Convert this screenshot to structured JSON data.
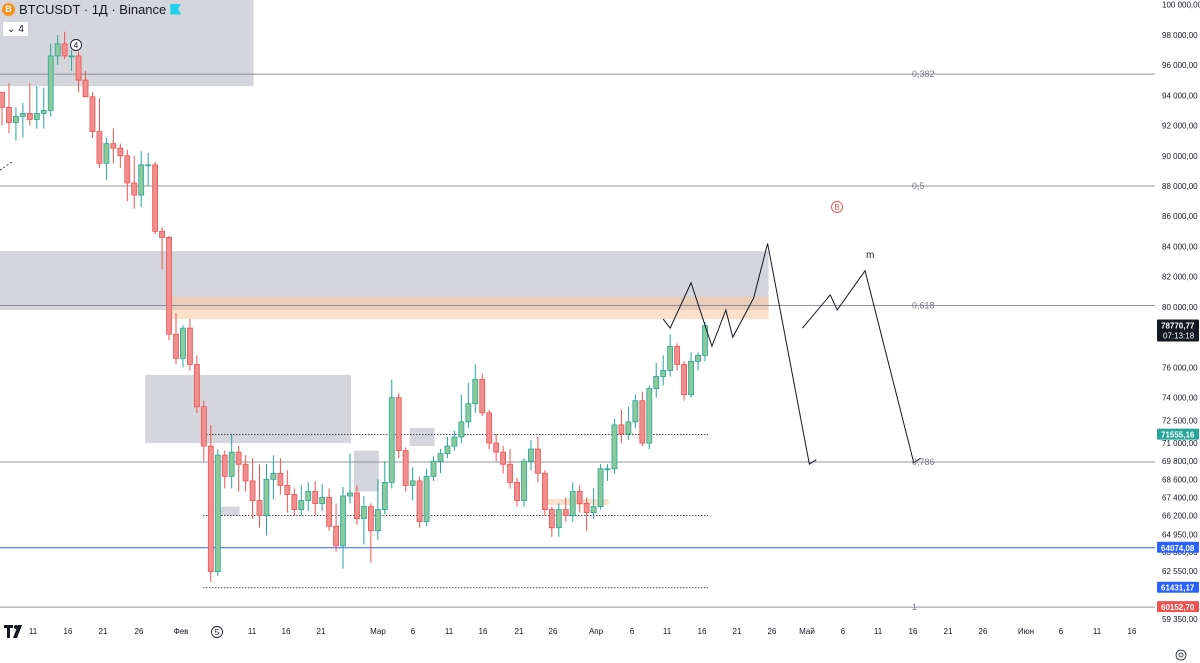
{
  "header": {
    "symbol": "BTCUSDT",
    "interval": "1Д",
    "exchange": "Binance",
    "coin_letter": "B",
    "title": "BTCUSDT · 1Д · Binance"
  },
  "indicator": {
    "chevron": "⌄",
    "value": "4"
  },
  "colors": {
    "up": "#26a69a",
    "up_fill": "#8bc99a",
    "down": "#ef5350",
    "down_fill": "#f08f90",
    "zone": "#b2b5be",
    "orange": "#f7c9a0",
    "blue_line": "#2962ff",
    "fib_line": "#787b86"
  },
  "price_axis": {
    "ticks": [
      "100 000,00",
      "98 000,00",
      "96 000,00",
      "94 000,00",
      "92 000,00",
      "90 000,00",
      "88 000,00",
      "86 000,00",
      "84 000,00",
      "82 000,00",
      "80 000,00",
      "78 000,00",
      "76 000,00",
      "74 000,00",
      "72 500,00",
      "71 000,00",
      "69 800,00",
      "68 600,00",
      "67 400,00",
      "66 200,00",
      "64 950,00",
      "63 800,00",
      "62 550,00",
      "61 350,00",
      "59 350,00"
    ]
  },
  "price_labels": [
    {
      "text": "78770,77",
      "sub": "07:13:18",
      "bg": "#131722",
      "fg": "#ffffff"
    },
    {
      "text": "71555,16",
      "bg": "#26a69a",
      "fg": "#ffffff"
    },
    {
      "text": "64074,08",
      "bg": "#2962ff",
      "fg": "#ffffff"
    },
    {
      "text": "61431,17",
      "bg": "#2962ff",
      "fg": "#ffffff"
    },
    {
      "text": "60152,70",
      "bg": "#ef5350",
      "fg": "#ffffff"
    }
  ],
  "fib_levels": [
    "0,382",
    "0,5",
    "0,618",
    "0,786",
    "1"
  ],
  "time_axis": {
    "ticks": [
      "11",
      "16",
      "21",
      "26",
      "Фев",
      "6",
      "11",
      "16",
      "21",
      "Мар",
      "6",
      "11",
      "16",
      "21",
      "26",
      "Апр",
      "6",
      "11",
      "16",
      "21",
      "26",
      "Май",
      "6",
      "11",
      "16",
      "21",
      "26",
      "Июн",
      "6",
      "11",
      "16"
    ]
  },
  "annotations": {
    "wave4": "4",
    "wave5": "5",
    "pointB": "B",
    "letter_m": "m"
  },
  "chart_data": {
    "type": "candlestick",
    "symbol": "BTCUSDT",
    "interval": "1Д",
    "ylim": [
      59100,
      100300
    ],
    "candles": [
      [
        94200,
        94200,
        92000,
        93200
      ],
      [
        93200,
        94800,
        91500,
        92200
      ],
      [
        92200,
        93200,
        91000,
        92600
      ],
      [
        92600,
        93500,
        91200,
        92800
      ],
      [
        92800,
        94800,
        92000,
        92400
      ],
      [
        92400,
        94600,
        91800,
        92800
      ],
      [
        92800,
        94500,
        91800,
        93000
      ],
      [
        93000,
        97400,
        92600,
        96600
      ],
      [
        96600,
        98000,
        96000,
        97400
      ],
      [
        97400,
        98200,
        96400,
        96600
      ],
      [
        96600,
        97000,
        95600,
        96600
      ],
      [
        96600,
        96900,
        94200,
        95000
      ],
      [
        95000,
        95600,
        94000,
        93900
      ],
      [
        93900,
        94200,
        91200,
        91600
      ],
      [
        91600,
        93800,
        89200,
        89500
      ],
      [
        89500,
        91200,
        88400,
        90800
      ],
      [
        90800,
        91800,
        89500,
        90500
      ],
      [
        90500,
        90800,
        89200,
        90000
      ],
      [
        90000,
        90400,
        87000,
        88200
      ],
      [
        88200,
        90000,
        86500,
        87400
      ],
      [
        87400,
        90300,
        86600,
        89400
      ],
      [
        89400,
        90200,
        88000,
        89400
      ],
      [
        89400,
        89600,
        84800,
        85000
      ],
      [
        85000,
        85300,
        82500,
        84600
      ],
      [
        84600,
        84700,
        77800,
        78200
      ],
      [
        78200,
        79600,
        76200,
        76600
      ],
      [
        76600,
        78800,
        76000,
        78600
      ],
      [
        78600,
        79200,
        75800,
        76200
      ],
      [
        76200,
        76800,
        73000,
        73400
      ],
      [
        73400,
        73800,
        69800,
        70800
      ],
      [
        70800,
        72200,
        61800,
        62500
      ],
      [
        62500,
        70600,
        62200,
        70200
      ],
      [
        70200,
        70500,
        68000,
        68800
      ],
      [
        68800,
        71600,
        68000,
        70400
      ],
      [
        70400,
        70800,
        67800,
        69600
      ],
      [
        69600,
        70200,
        67800,
        68500
      ],
      [
        68500,
        70000,
        66000,
        67200
      ],
      [
        67200,
        69600,
        65400,
        66200
      ],
      [
        66200,
        69600,
        64900,
        68600
      ],
      [
        68600,
        70200,
        67300,
        69000
      ],
      [
        69000,
        70000,
        67600,
        68200
      ],
      [
        68200,
        69200,
        66400,
        67600
      ],
      [
        67600,
        68000,
        66200,
        66600
      ],
      [
        66600,
        68200,
        66200,
        67200
      ],
      [
        67200,
        68400,
        66500,
        67800
      ],
      [
        67800,
        68500,
        66200,
        67000
      ],
      [
        67000,
        68300,
        66500,
        67400
      ],
      [
        67400,
        68000,
        65200,
        65500
      ],
      [
        65500,
        67000,
        63800,
        64200
      ],
      [
        64200,
        68100,
        62700,
        67500
      ],
      [
        67500,
        70300,
        67000,
        67700
      ],
      [
        67700,
        68200,
        65600,
        66000
      ],
      [
        66000,
        67500,
        64300,
        66800
      ],
      [
        66800,
        67000,
        63100,
        65200
      ],
      [
        65200,
        68600,
        64600,
        66600
      ],
      [
        66600,
        69800,
        66300,
        68400
      ],
      [
        68400,
        75200,
        68000,
        74000
      ],
      [
        74000,
        74300,
        70000,
        70500
      ],
      [
        70500,
        70700,
        67800,
        68200
      ],
      [
        68200,
        69400,
        67200,
        68500
      ],
      [
        68500,
        68800,
        65400,
        65800
      ],
      [
        65800,
        69300,
        65500,
        68800
      ],
      [
        68800,
        70100,
        68500,
        69800
      ],
      [
        69800,
        70600,
        69000,
        70300
      ],
      [
        70300,
        71400,
        70000,
        70800
      ],
      [
        70800,
        71800,
        70500,
        71400
      ],
      [
        71400,
        74200,
        71000,
        72400
      ],
      [
        72400,
        75000,
        72000,
        73600
      ],
      [
        73600,
        76200,
        73000,
        75200
      ],
      [
        75200,
        75600,
        72800,
        73000
      ],
      [
        73000,
        73200,
        70600,
        71000
      ],
      [
        71000,
        71600,
        69800,
        70400
      ],
      [
        70400,
        70800,
        69000,
        69600
      ],
      [
        69600,
        70600,
        68000,
        68400
      ],
      [
        68400,
        68700,
        66800,
        67200
      ],
      [
        67200,
        70000,
        66800,
        69800
      ],
      [
        69800,
        71200,
        69200,
        70600
      ],
      [
        70600,
        71400,
        68400,
        69000
      ],
      [
        69000,
        69200,
        66200,
        66600
      ],
      [
        66600,
        66800,
        64800,
        65400
      ],
      [
        65400,
        67000,
        64800,
        66600
      ],
      [
        66600,
        67400,
        65800,
        66200
      ],
      [
        66200,
        68400,
        65800,
        67800
      ],
      [
        67800,
        68200,
        66400,
        67000
      ],
      [
        67000,
        67400,
        65200,
        66400
      ],
      [
        66400,
        68000,
        66000,
        66800
      ],
      [
        66800,
        69600,
        66600,
        69300
      ],
      [
        69300,
        69600,
        68500,
        69300
      ],
      [
        69300,
        72600,
        69000,
        72200
      ],
      [
        72200,
        73200,
        71000,
        71600
      ],
      [
        71600,
        73400,
        71200,
        72400
      ],
      [
        72400,
        74200,
        72000,
        73800
      ],
      [
        73800,
        74400,
        70800,
        71000
      ],
      [
        71000,
        74800,
        70600,
        74600
      ],
      [
        74600,
        76300,
        74000,
        75400
      ],
      [
        75400,
        76800,
        74800,
        75800
      ],
      [
        75800,
        78200,
        75400,
        77400
      ],
      [
        77400,
        77600,
        75800,
        76200
      ],
      [
        76200,
        76400,
        73800,
        74200
      ],
      [
        74200,
        77000,
        74000,
        76400
      ],
      [
        76400,
        77000,
        75800,
        76800
      ],
      [
        76800,
        79000,
        76400,
        78770
      ]
    ],
    "fib_values": {
      "0,382": 95400,
      "0,5": 88000,
      "0,618": 80100,
      "0,786": 69750,
      "1": 60152.7
    },
    "zones": [
      {
        "from_bar": 0,
        "to_bar": 36,
        "y1": 94600,
        "y2": 100300,
        "color": "gray"
      },
      {
        "from_bar": 0,
        "to_bar": 110,
        "y1": 79800,
        "y2": 83700,
        "color": "gray"
      },
      {
        "from_bar": 24,
        "to_bar": 110,
        "y1": 79200,
        "y2": 80700,
        "color": "orange"
      },
      {
        "from_bar": 21,
        "to_bar": 50,
        "y1": 71000,
        "y2": 75500,
        "color": "gray"
      },
      {
        "from_bar": 51,
        "to_bar": 54,
        "y1": 67800,
        "y2": 70500,
        "color": "gray"
      },
      {
        "from_bar": 59,
        "to_bar": 62,
        "y1": 70800,
        "y2": 72000,
        "color": "gray"
      },
      {
        "from_bar": 78,
        "to_bar": 87,
        "y1": 66900,
        "y2": 67300,
        "color": "orange"
      },
      {
        "from_bar": 31,
        "to_bar": 34,
        "y1": 66200,
        "y2": 66800,
        "color": "gray"
      }
    ],
    "horizontal_lines": [
      {
        "value": 64074.08,
        "color": "blue"
      },
      {
        "value": 71555.16,
        "style": "dotted"
      },
      {
        "value": 66200,
        "style": "dotted"
      },
      {
        "value": 61431.17,
        "style": "dotted"
      }
    ],
    "projection_path": [
      [
        95,
        79200
      ],
      [
        96,
        78600
      ],
      [
        99,
        81600
      ],
      [
        102,
        77400
      ],
      [
        104,
        79800
      ],
      [
        105,
        78000
      ],
      [
        108,
        80600
      ],
      [
        110,
        84200
      ],
      [
        116,
        69600
      ],
      [
        117,
        69900
      ]
    ],
    "projection_path2": [
      [
        115,
        78600
      ],
      [
        119,
        80800
      ],
      [
        120,
        79800
      ],
      [
        124,
        82400
      ],
      [
        131,
        69700
      ],
      [
        132,
        70000
      ]
    ]
  }
}
